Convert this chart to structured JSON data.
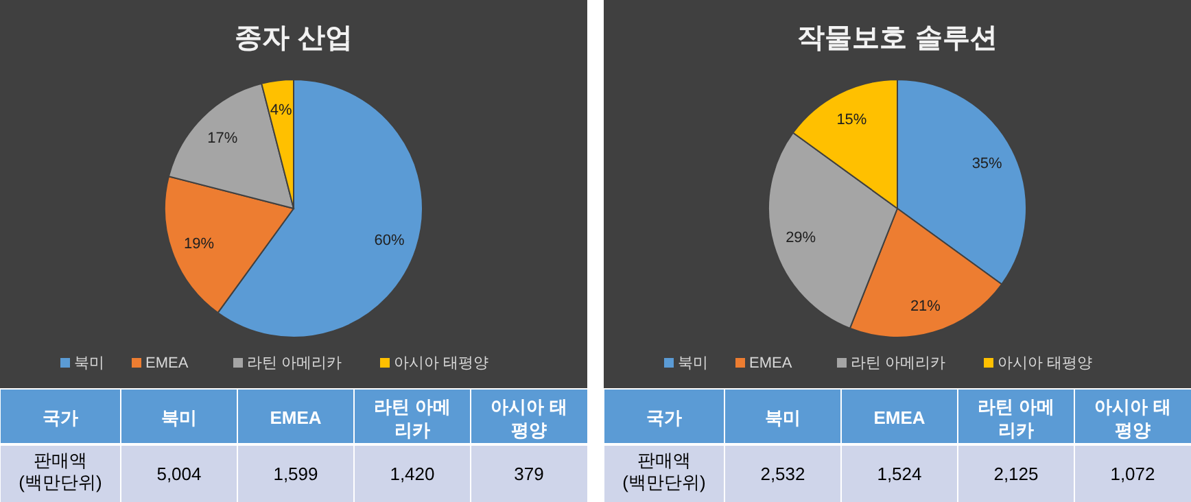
{
  "chart_data": [
    {
      "type": "pie",
      "title": "종자 산업",
      "categories": [
        "북미",
        "EMEA",
        "라틴 아메리카",
        "아시아 태평양"
      ],
      "values": [
        60,
        19,
        17,
        4
      ],
      "colors": [
        "#5b9bd5",
        "#ed7d31",
        "#a5a5a5",
        "#ffc000"
      ],
      "value_labels": [
        "60%",
        "19%",
        "17%",
        "4%"
      ],
      "legend": "bottom",
      "annotations": [
        "국가",
        "판매액 (백만단위)",
        "5,004",
        "1,599",
        "1,420",
        "379"
      ]
    },
    {
      "type": "pie",
      "title": "작물보호 솔루션",
      "categories": [
        "북미",
        "EMEA",
        "라틴 아메리카",
        "아시아 태평양"
      ],
      "values": [
        35,
        21,
        29,
        15
      ],
      "colors": [
        "#5b9bd5",
        "#ed7d31",
        "#a5a5a5",
        "#ffc000"
      ],
      "value_labels": [
        "35%",
        "21%",
        "29%",
        "15%"
      ],
      "legend": "bottom",
      "annotations": [
        "국가",
        "판매액 (백만단위)",
        "2,532",
        "1,524",
        "2,125",
        "1,072"
      ]
    }
  ]
}
